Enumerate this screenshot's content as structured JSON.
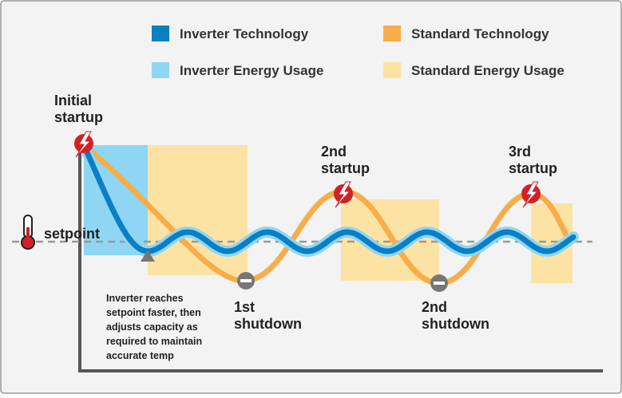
{
  "legend": [
    {
      "label": "Inverter Technology",
      "color": "#0a7fc4"
    },
    {
      "label": "Inverter Energy Usage",
      "color": "#8fd6f4"
    },
    {
      "label": "Standard Technology",
      "color": "#f7ad4a"
    },
    {
      "label": "Standard Energy Usage",
      "color": "#fde3a3"
    }
  ],
  "labels": {
    "initial_startup": [
      "Initial",
      "startup"
    ],
    "second_startup": [
      "2nd",
      "startup"
    ],
    "third_startup": [
      "3rd",
      "startup"
    ],
    "setpoint": "setpoint",
    "first_shutdown": [
      "1st",
      "shutdown"
    ],
    "second_shutdown": [
      "2nd",
      "shutdown"
    ],
    "note": [
      "Inverter reaches",
      "setpoint faster, then",
      "adjusts capacity as",
      "required to maintain",
      "accurate temp"
    ]
  }
}
